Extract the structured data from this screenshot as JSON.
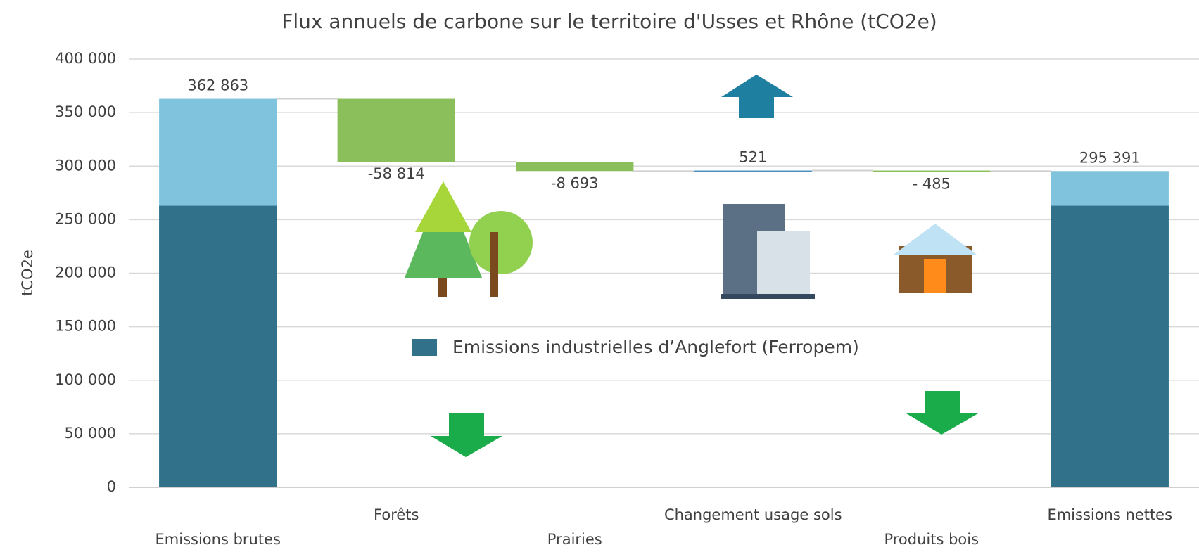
{
  "chart_data": {
    "type": "waterfall",
    "title": "Flux annuels de carbone sur le territoire d'Usses et Rhône (tCO2e)",
    "y_label": "tCO2e",
    "categories": [
      "Emissions brutes",
      "Forêts",
      "Prairies",
      "Changement usage sols",
      "Produits bois",
      "Emissions nettes"
    ],
    "measure": [
      "total",
      "relative",
      "relative",
      "relative",
      "relative",
      "total"
    ],
    "values": [
      362863,
      -58814,
      -8693,
      521,
      -485,
      295391
    ],
    "value_labels": [
      "362 863",
      "-58 814",
      "-8 693",
      "521",
      "- 485",
      "295 391"
    ],
    "colors": {
      "total": "#7fc3dc",
      "decrease": "#8bbf5c",
      "increase": "#4a8fc0"
    },
    "series": [
      {
        "name": "Emissions industrielles d’Anglefort (Ferropem)",
        "color": "#31728a",
        "values": [
          263000,
          null,
          null,
          null,
          null,
          263000
        ]
      }
    ],
    "ylim": [
      0,
      400000
    ],
    "yticks": [
      0,
      {
        "value": 50000,
        "label": "50 000"
      },
      {
        "value": 100000,
        "label": "100 000"
      },
      {
        "value": 150000,
        "label": "150 000"
      },
      {
        "value": 200000,
        "label": "200 000"
      },
      {
        "value": 250000,
        "label": "250 000"
      },
      {
        "value": 300000,
        "label": "300 000"
      },
      {
        "value": 350000,
        "label": "350 000"
      },
      {
        "value": 400000,
        "label": "400 000"
      }
    ],
    "grid": true
  }
}
